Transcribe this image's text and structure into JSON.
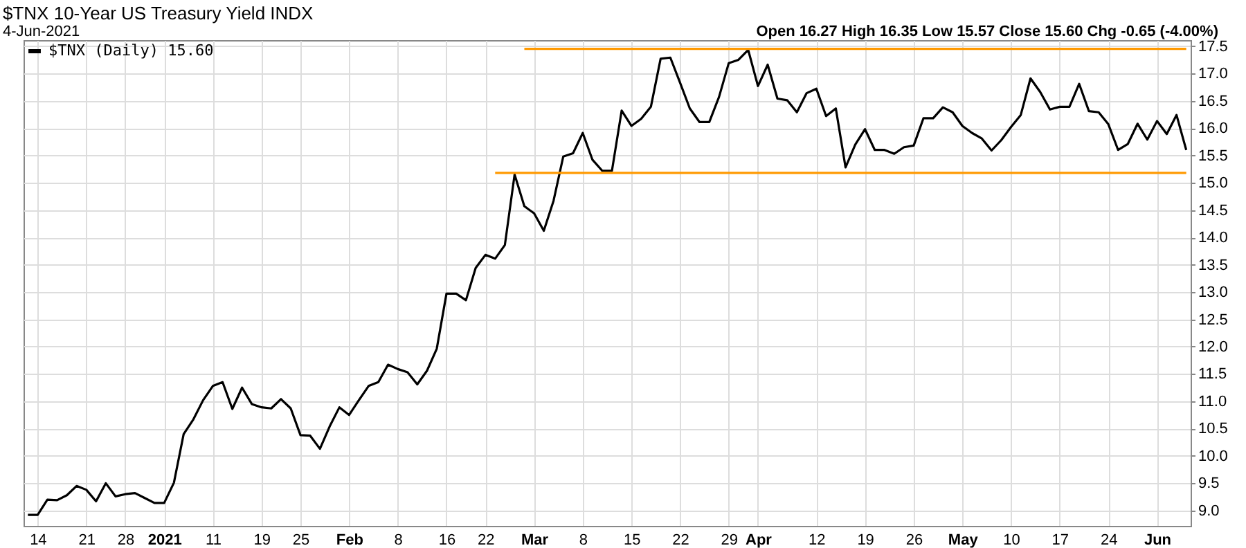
{
  "chart_data": {
    "type": "line",
    "title": "$TNX 10-Year US Treasury Yield INDX",
    "subtitle": "4-Jun-2021",
    "annotations": [
      "Open 16.27 High 16.35 Low 15.57 Close 15.60 Chg -0.65 (-4.00%)"
    ],
    "categories": [
      null,
      "14",
      null,
      null,
      null,
      null,
      "21",
      null,
      null,
      null,
      "28",
      null,
      null,
      null,
      "2021",
      null,
      null,
      null,
      null,
      "11",
      null,
      null,
      null,
      null,
      "19",
      null,
      null,
      null,
      "25",
      null,
      null,
      null,
      null,
      "Feb",
      null,
      null,
      null,
      null,
      "8",
      null,
      null,
      null,
      null,
      "16",
      null,
      null,
      null,
      "22",
      null,
      null,
      null,
      null,
      "Mar",
      null,
      null,
      null,
      null,
      "8",
      null,
      null,
      null,
      null,
      "15",
      null,
      null,
      null,
      null,
      "22",
      null,
      null,
      null,
      null,
      "29",
      null,
      null,
      "Apr",
      null,
      null,
      null,
      null,
      null,
      "12",
      null,
      null,
      null,
      null,
      "19",
      null,
      null,
      null,
      null,
      "26",
      null,
      null,
      null,
      null,
      "May",
      null,
      null,
      null,
      null,
      "10",
      null,
      null,
      null,
      null,
      "17",
      null,
      null,
      null,
      null,
      "24",
      null,
      null,
      null,
      null,
      "Jun",
      null,
      null,
      null
    ],
    "series": [
      {
        "name": "$TNX (Daily) 15.60",
        "color": "#000000",
        "values": [
          8.92,
          8.92,
          9.2,
          9.19,
          9.28,
          9.45,
          9.38,
          9.17,
          9.5,
          9.26,
          9.3,
          9.32,
          9.23,
          9.14,
          9.14,
          9.51,
          10.4,
          10.67,
          11.02,
          11.28,
          11.35,
          10.86,
          11.25,
          10.95,
          10.89,
          10.87,
          11.04,
          10.87,
          10.38,
          10.37,
          10.13,
          10.54,
          10.89,
          10.75,
          11.02,
          11.28,
          11.35,
          11.67,
          11.59,
          11.53,
          11.31,
          11.56,
          11.96,
          12.97,
          12.97,
          12.85,
          13.44,
          13.68,
          13.61,
          13.86,
          15.15,
          14.57,
          14.44,
          14.12,
          14.67,
          15.48,
          15.54,
          15.91,
          15.42,
          15.22,
          15.22,
          16.32,
          16.04,
          16.17,
          16.39,
          17.27,
          17.29,
          16.83,
          16.36,
          16.11,
          16.11,
          16.57,
          17.19,
          17.25,
          17.43,
          16.77,
          17.16,
          16.54,
          16.51,
          16.29,
          16.64,
          16.72,
          16.22,
          16.36,
          15.28,
          15.7,
          15.98,
          15.6,
          15.6,
          15.53,
          15.65,
          15.68,
          16.18,
          16.18,
          16.38,
          16.29,
          16.04,
          15.91,
          15.81,
          15.59,
          15.78,
          16.02,
          16.24,
          16.91,
          16.66,
          16.34,
          16.39,
          16.39,
          16.81,
          16.31,
          16.29,
          16.07,
          15.6,
          15.71,
          16.08,
          15.79,
          16.13,
          15.89,
          16.24,
          15.6
        ]
      },
      {
        "color": "#ff9900",
        "values": [
          null,
          null,
          null,
          null,
          null,
          null,
          null,
          null,
          null,
          null,
          null,
          null,
          null,
          null,
          null,
          null,
          null,
          null,
          null,
          null,
          null,
          null,
          null,
          null,
          null,
          null,
          null,
          null,
          null,
          null,
          null,
          null,
          null,
          null,
          null,
          null,
          null,
          null,
          null,
          null,
          null,
          null,
          null,
          null,
          null,
          null,
          null,
          null,
          null,
          null,
          null,
          17.45,
          17.45,
          17.45,
          17.45,
          17.45,
          17.45,
          17.45,
          17.45,
          17.45,
          17.45,
          17.45,
          17.45,
          17.45,
          17.45,
          17.45,
          17.45,
          17.45,
          17.45,
          17.45,
          17.45,
          17.45,
          17.45,
          17.45,
          17.45,
          17.45,
          17.45,
          17.45,
          17.45,
          17.45,
          17.45,
          17.45,
          17.45,
          17.45,
          17.45,
          17.45,
          17.45,
          17.45,
          17.45,
          17.45,
          17.45,
          17.45,
          17.45,
          17.45,
          17.45,
          17.45,
          17.45,
          17.45,
          17.45,
          17.45,
          17.45,
          17.45,
          17.45,
          17.45,
          17.45,
          17.45,
          17.45,
          17.45,
          17.45,
          17.45,
          17.45,
          17.45,
          17.45,
          17.45,
          17.45,
          17.45,
          17.45,
          17.45,
          17.45,
          17.45
        ]
      },
      {
        "color": "#ff9900",
        "values": [
          null,
          null,
          null,
          null,
          null,
          null,
          null,
          null,
          null,
          null,
          null,
          null,
          null,
          null,
          null,
          null,
          null,
          null,
          null,
          null,
          null,
          null,
          null,
          null,
          null,
          null,
          null,
          null,
          null,
          null,
          null,
          null,
          null,
          null,
          null,
          null,
          null,
          null,
          null,
          null,
          null,
          null,
          null,
          null,
          null,
          null,
          null,
          null,
          15.18,
          15.18,
          15.18,
          15.18,
          15.18,
          15.18,
          15.18,
          15.18,
          15.18,
          15.18,
          15.18,
          15.18,
          15.18,
          15.18,
          15.18,
          15.18,
          15.18,
          15.18,
          15.18,
          15.18,
          15.18,
          15.18,
          15.18,
          15.18,
          15.18,
          15.18,
          15.18,
          15.18,
          15.18,
          15.18,
          15.18,
          15.18,
          15.18,
          15.18,
          15.18,
          15.18,
          15.18,
          15.18,
          15.18,
          15.18,
          15.18,
          15.18,
          15.18,
          15.18,
          15.18,
          15.18,
          15.18,
          15.18,
          15.18,
          15.18,
          15.18,
          15.18,
          15.18,
          15.18,
          15.18,
          15.18,
          15.18,
          15.18,
          15.18,
          15.18,
          15.18,
          15.18,
          15.18,
          15.18,
          15.18,
          15.18,
          15.18,
          15.18,
          15.18,
          15.18,
          15.18,
          15.18
        ]
      }
    ],
    "ylim": [
      8.72,
      17.61
    ],
    "yticks": [
      {
        "value": 9,
        "label": "9.0"
      },
      {
        "value": 9.5,
        "label": "9.5"
      },
      {
        "value": 10,
        "label": "10.0"
      },
      {
        "value": 10.5,
        "label": "10.5"
      },
      {
        "value": 11,
        "label": "11.0"
      },
      {
        "value": 11.5,
        "label": "11.5"
      },
      {
        "value": 12,
        "label": "12.0"
      },
      {
        "value": 12.5,
        "label": "12.5"
      },
      {
        "value": 13,
        "label": "13.0"
      },
      {
        "value": 13.5,
        "label": "13.5"
      },
      {
        "value": 14,
        "label": "14.0"
      },
      {
        "value": 14.5,
        "label": "14.5"
      },
      {
        "value": 15,
        "label": "15.0"
      },
      {
        "value": 15.5,
        "label": "15.5"
      },
      {
        "value": 16,
        "label": "16.0"
      },
      {
        "value": 16.5,
        "label": "16.5"
      },
      {
        "value": 17,
        "label": "17.0"
      },
      {
        "value": 17.5,
        "label": "17.5"
      }
    ],
    "grid": true,
    "legend": "top left"
  }
}
